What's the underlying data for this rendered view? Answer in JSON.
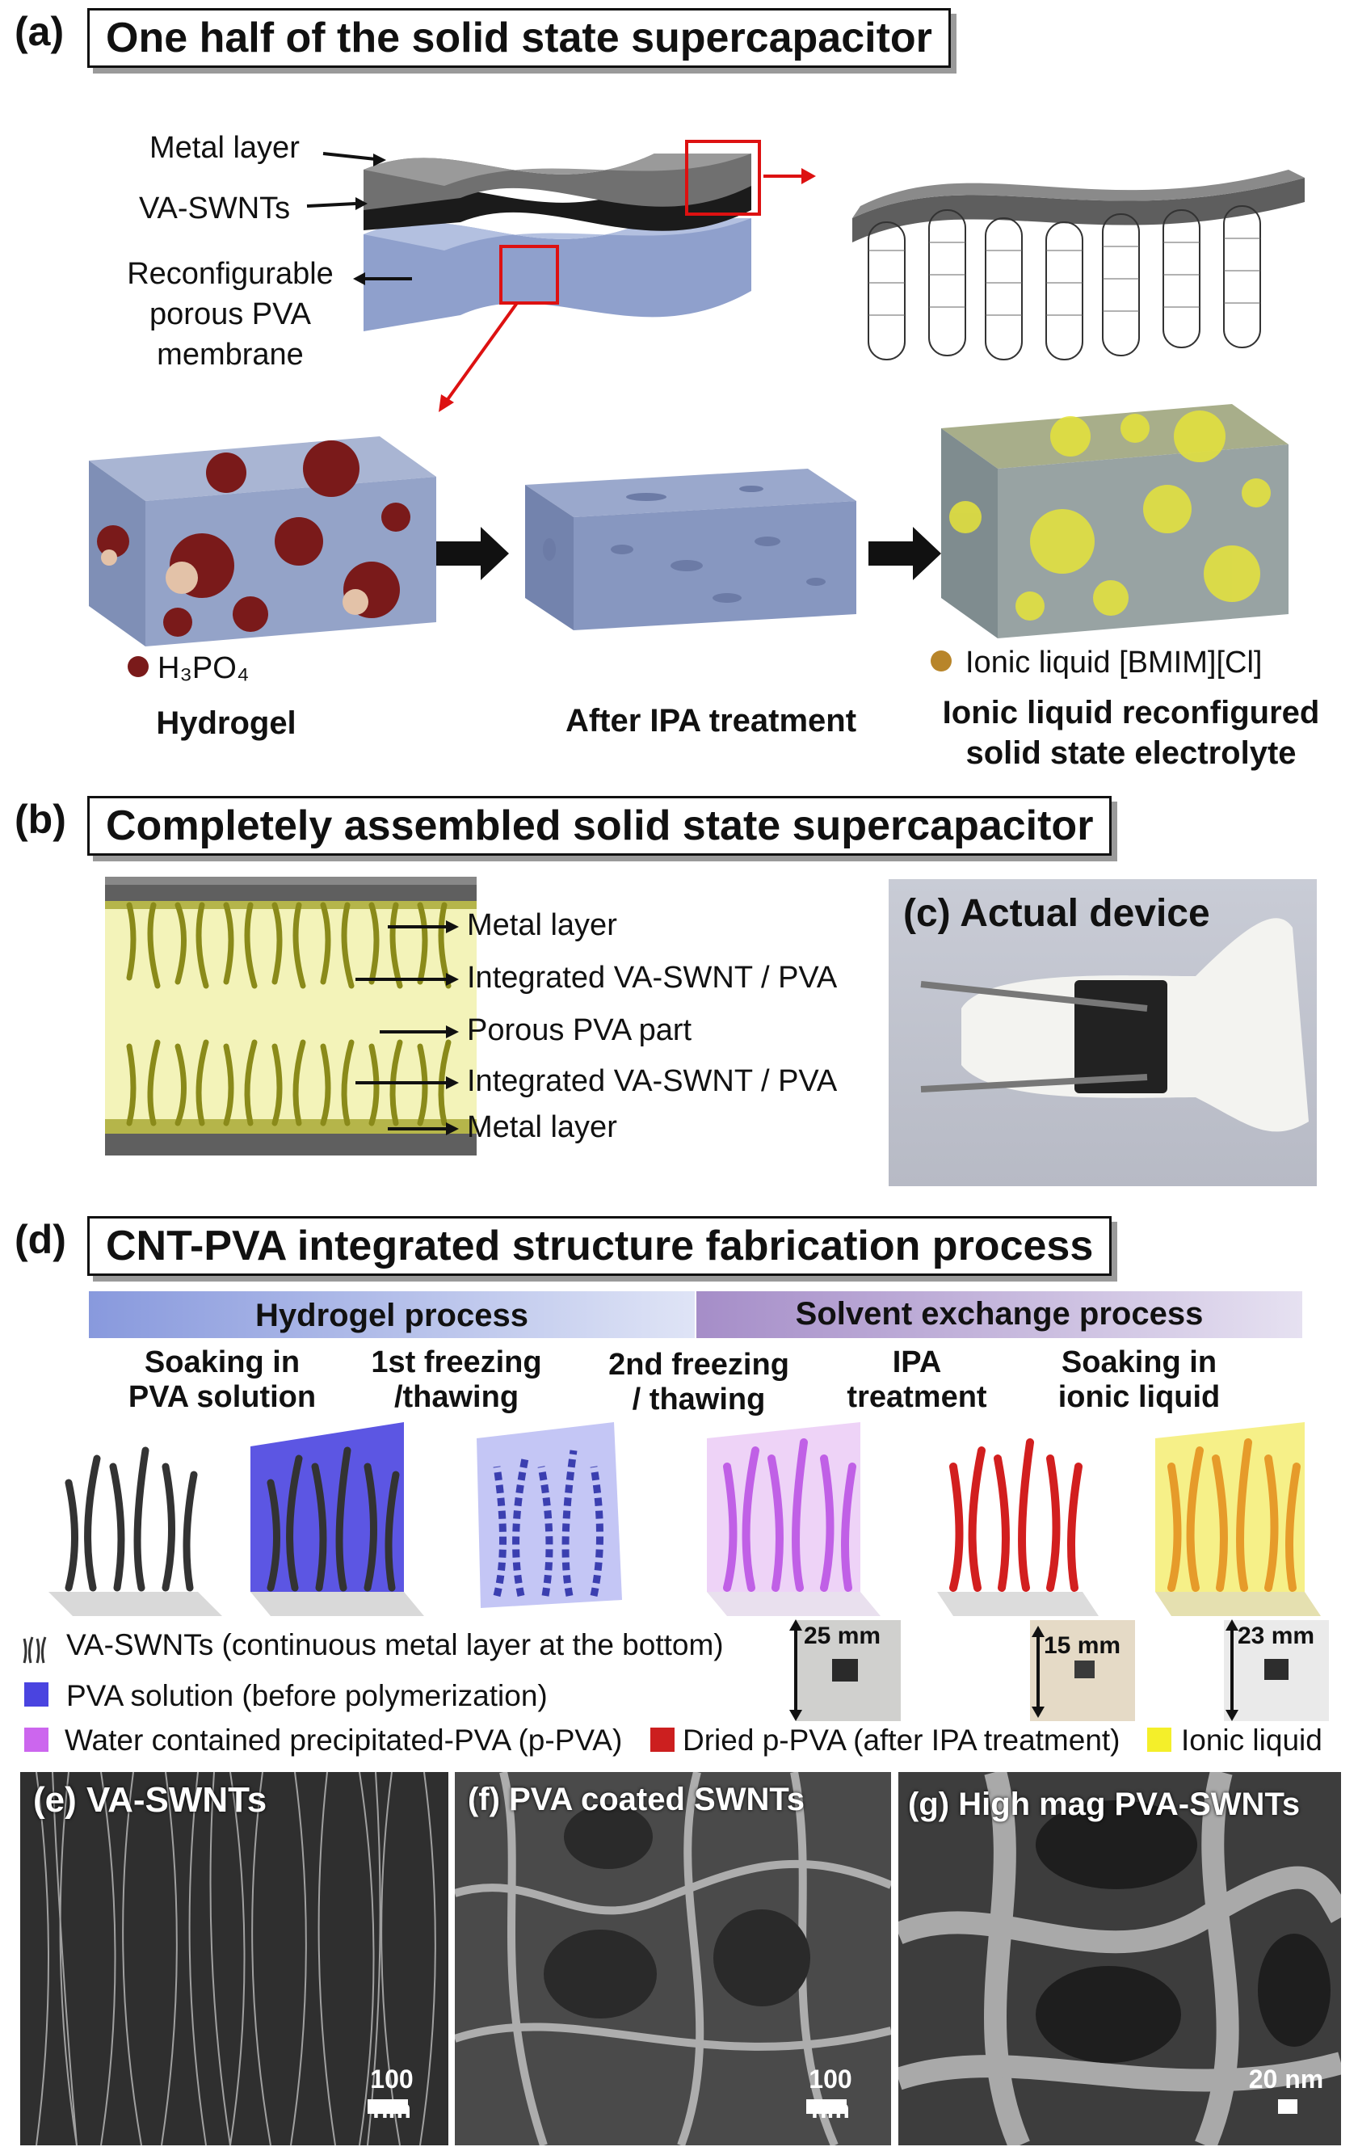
{
  "panel_a": {
    "label": "(a)",
    "title": "One half of the solid state supercapacitor",
    "layer_labels": [
      "Metal layer",
      "VA-SWNTs",
      "Reconfigurable",
      "porous PVA",
      "membrane"
    ],
    "h3po4_label": "H₃PO₄",
    "ionic_liquid_label": "Ionic liquid [BMIM][Cl]",
    "stage_hydrogel": "Hydrogel",
    "stage_ipa": "After IPA treatment",
    "stage_ionic_1": "Ionic liquid reconfigured",
    "stage_ionic_2": "solid state electrolyte"
  },
  "panel_b": {
    "label": "(b)",
    "title": "Completely assembled solid state supercapacitor",
    "layers": [
      "Metal layer",
      "Integrated VA-SWNT / PVA",
      "Porous PVA part",
      "Integrated VA-SWNT / PVA",
      "Metal layer"
    ]
  },
  "panel_c": {
    "title": "(c) Actual device"
  },
  "panel_d": {
    "label": "(d)",
    "title": "CNT-PVA integrated structure fabrication process",
    "process_1": "Hydrogel process",
    "process_2": "Solvent exchange process",
    "steps": [
      {
        "l1": "Soaking in",
        "l2": "PVA solution"
      },
      {
        "l1": "1st freezing",
        "l2": "/thawing"
      },
      {
        "l1": "2nd freezing",
        "l2": "/ thawing"
      },
      {
        "l1": "IPA",
        "l2": "treatment"
      },
      {
        "l1": "Soaking in",
        "l2": "ionic liquid"
      }
    ],
    "photo_sizes": [
      "25 mm",
      "15 mm",
      "23 mm"
    ],
    "legend_1": "VA-SWNTs (continuous metal layer at the bottom)",
    "legend_2": "PVA solution (before polymerization)",
    "legend_3": "Water contained precipitated-PVA (p-PVA)",
    "legend_4": "Dried p-PVA (after IPA treatment)",
    "legend_5": "Ionic liquid"
  },
  "sem": [
    {
      "label": "(e) VA-SWNTs",
      "scale": "100 nm"
    },
    {
      "label": "(f) PVA coated SWNTs",
      "scale": "100 nm"
    },
    {
      "label": "(g) High mag PVA-SWNTs",
      "scale": "20 nm"
    }
  ],
  "colors": {
    "h3po4": "#7a1a1a",
    "ionic_liquid": "#e6e43a",
    "pvpa": "#cc66ee",
    "dried_ppva": "#cc1f1f",
    "pva_solution": "#4a44e0",
    "membrane": "#8fa0cc"
  }
}
